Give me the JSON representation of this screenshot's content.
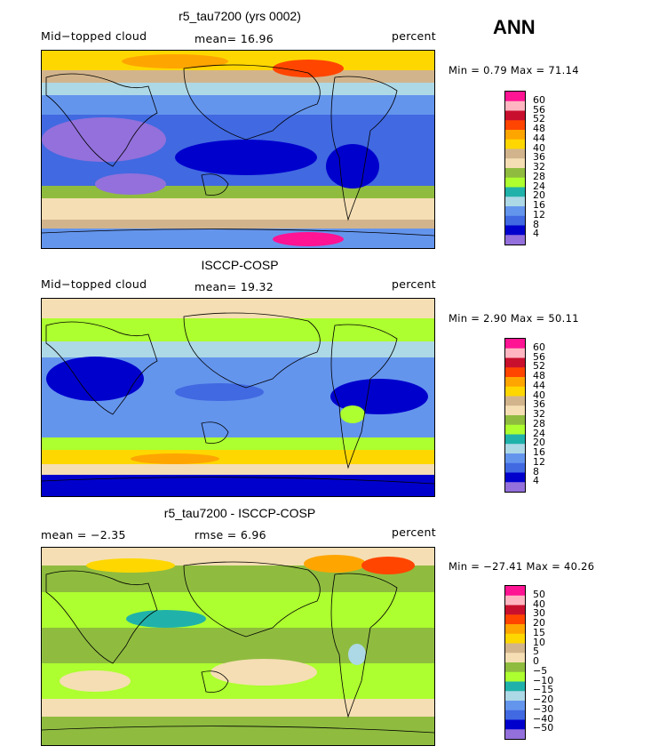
{
  "season": "ANN",
  "panels": [
    {
      "title": "r5_tau7200 (yrs 0002)",
      "left_label": "Mid−topped cloud",
      "center_label": "mean=  16.96",
      "right_label": "percent",
      "minmax": "Min =   0.79 Max =  71.14",
      "levels": [
        "60",
        "56",
        "52",
        "48",
        "44",
        "40",
        "36",
        "32",
        "28",
        "24",
        "20",
        "16",
        "12",
        "8",
        "4"
      ],
      "colors": [
        "#ff1493",
        "#ffb6c1",
        "#c8102e",
        "#ff4500",
        "#ffa500",
        "#ffd700",
        "#d2b48c",
        "#f5deb3",
        "#8fbc3f",
        "#adff2f",
        "#20b2aa",
        "#add8e6",
        "#6495ed",
        "#4169e1",
        "#0000cd",
        "#9370db"
      ]
    },
    {
      "title": "ISCCP-COSP",
      "left_label": "Mid−topped cloud",
      "center_label": "mean=  19.32",
      "right_label": "percent",
      "minmax": "Min =   2.90 Max =  50.11",
      "levels": [
        "60",
        "56",
        "52",
        "48",
        "44",
        "40",
        "36",
        "32",
        "28",
        "24",
        "20",
        "16",
        "12",
        "8",
        "4"
      ],
      "colors": [
        "#ff1493",
        "#ffb6c1",
        "#c8102e",
        "#ff4500",
        "#ffa500",
        "#ffd700",
        "#d2b48c",
        "#f5deb3",
        "#8fbc3f",
        "#adff2f",
        "#20b2aa",
        "#add8e6",
        "#6495ed",
        "#4169e1",
        "#0000cd",
        "#9370db"
      ]
    },
    {
      "title": "r5_tau7200 - ISCCP-COSP",
      "left_label": "mean =  −2.35",
      "center_label": "rmse =   6.96",
      "right_label": "percent",
      "minmax": "Min = −27.41 Max =  40.26",
      "levels": [
        "50",
        "40",
        "30",
        "20",
        "15",
        "10",
        "5",
        "0",
        "−5",
        "−10",
        "−15",
        "−20",
        "−30",
        "−40",
        "−50"
      ],
      "colors": [
        "#ff1493",
        "#ffb6c1",
        "#c8102e",
        "#ff4500",
        "#ffa500",
        "#ffd700",
        "#d2b48c",
        "#f5deb3",
        "#8fbc3f",
        "#adff2f",
        "#20b2aa",
        "#add8e6",
        "#6495ed",
        "#4169e1",
        "#0000cd",
        "#9370db"
      ]
    }
  ]
}
